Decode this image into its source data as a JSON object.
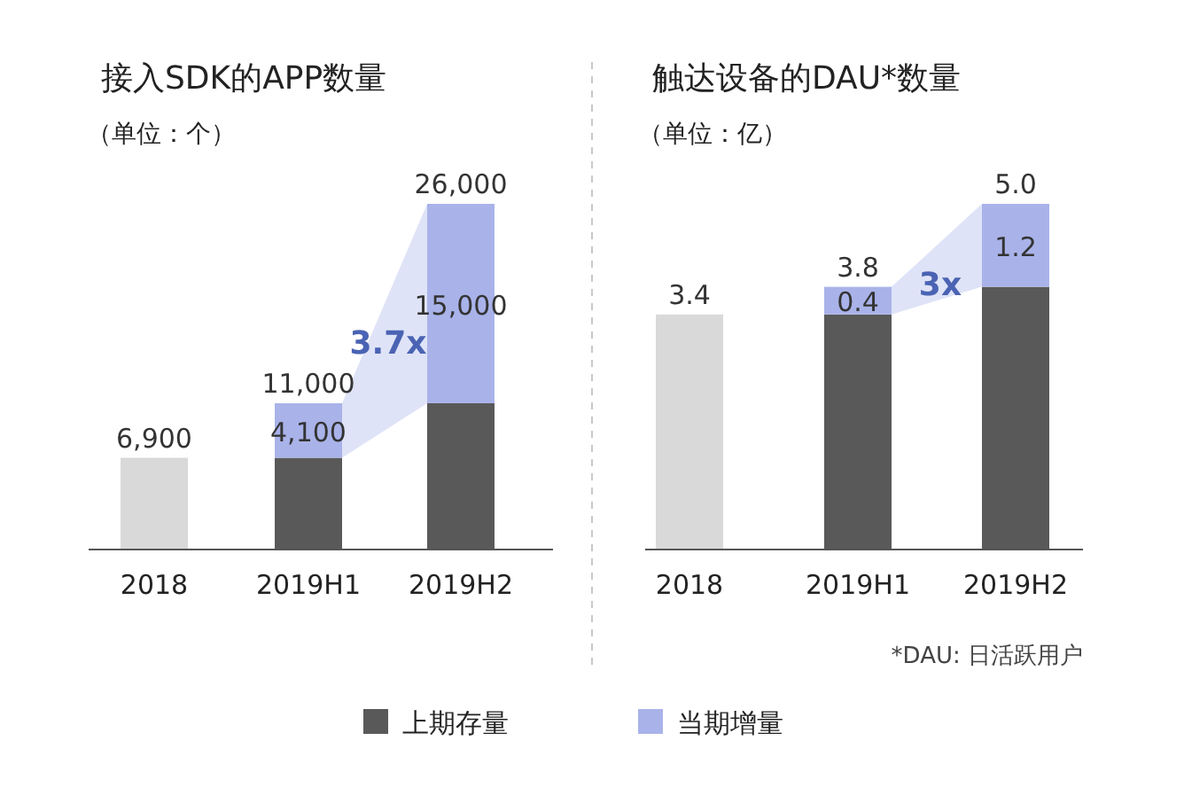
{
  "chart_data": [
    {
      "type": "bar",
      "title": "接入SDK的APP数量",
      "subtitle": "（单位：个）",
      "stacked": true,
      "legend": "bottom",
      "categories": [
        "2018",
        "2019H1",
        "2019H2"
      ],
      "series": [
        {
          "name": "上期存量",
          "colors": [
            "#d9d9d9",
            "#595959",
            "#595959"
          ],
          "values": [
            6900,
            6900,
            11000
          ],
          "value_labels": [
            "6,900",
            null,
            null
          ]
        },
        {
          "name": "当期增量",
          "color": "#a9b3e9",
          "values": [
            null,
            4100,
            15000
          ],
          "value_labels": [
            null,
            "4,100",
            "15,000"
          ]
        }
      ],
      "totals": [
        null,
        "11,000",
        "26,000"
      ],
      "annotations": [
        "3.7x"
      ]
    },
    {
      "type": "bar",
      "title": "触达设备的DAU*数量",
      "subtitle": "（单位：亿）",
      "stacked": true,
      "categories": [
        "2018",
        "2019H1",
        "2019H2"
      ],
      "series": [
        {
          "colors": [
            "#d9d9d9",
            "#595959",
            "#595959"
          ],
          "values": [
            3.4,
            3.4,
            3.8
          ],
          "value_labels": [
            "3.4",
            null,
            null
          ]
        },
        {
          "color": "#a9b3e9",
          "values": [
            null,
            0.4,
            1.2
          ],
          "value_labels": [
            null,
            "0.4",
            "1.2"
          ]
        }
      ],
      "totals": [
        null,
        "3.8",
        "5.0"
      ],
      "annotations": [
        "3x",
        "*DAU: 日活跃用户"
      ]
    }
  ]
}
